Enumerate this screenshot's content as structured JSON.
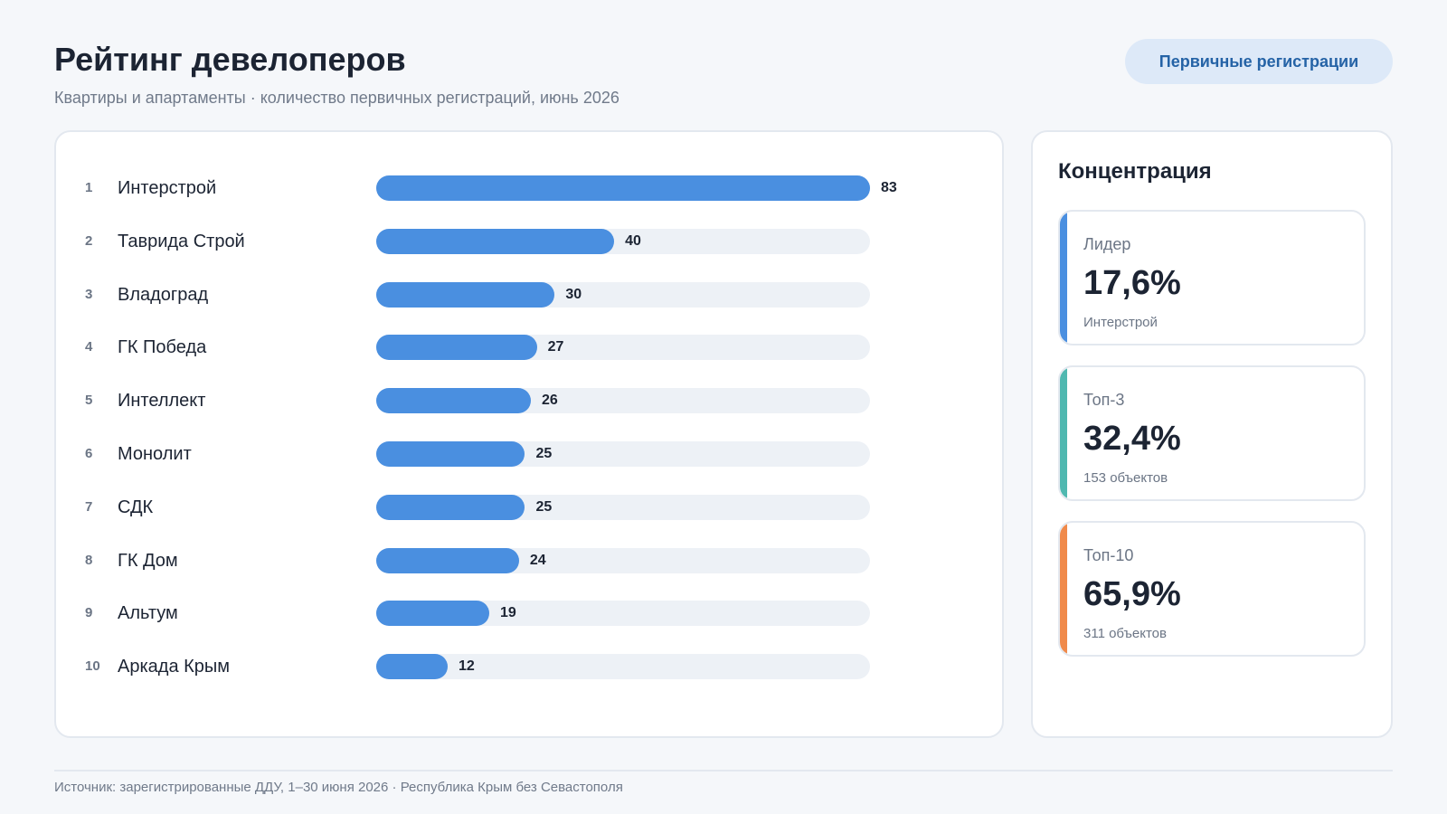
{
  "header": {
    "title": "Рейтинг девелоперов",
    "subtitle": "Квартиры и апартаменты · количество первичных регистраций, июнь 2026",
    "mode_button": "Первичные регистрации"
  },
  "chart_data": {
    "type": "bar",
    "orientation": "horizontal",
    "ranks": [
      "1",
      "2",
      "3",
      "4",
      "5",
      "6",
      "7",
      "8",
      "9",
      "10"
    ],
    "categories": [
      "Интерстрой",
      "Таврида Строй",
      "Владоград",
      "ГК Победа",
      "Интеллект",
      "Монолит",
      "СДК",
      "ГК Дом",
      "Альтум",
      "Аркада Крым"
    ],
    "values": [
      83,
      40,
      30,
      27,
      26,
      25,
      25,
      24,
      19,
      12
    ],
    "xlim": [
      0,
      83
    ],
    "grid": false,
    "color": "#4a8fe0",
    "track_color": "#edf1f6"
  },
  "concentration": {
    "title": "Концентрация",
    "cards": [
      {
        "label": "Лидер",
        "value": "17,6%",
        "note": "Интерстрой",
        "color": "#4a8fe0"
      },
      {
        "label": "Топ-3",
        "value": "32,4%",
        "note": "153 объектов",
        "color": "#4fb8b0"
      },
      {
        "label": "Топ-10",
        "value": "65,9%",
        "note": "311 объектов",
        "color": "#f08a4b"
      }
    ]
  },
  "footer": {
    "source": "Источник: зарегистрированные ДДУ, 1–30 июня 2026 · Республика Крым без Севастополя"
  }
}
